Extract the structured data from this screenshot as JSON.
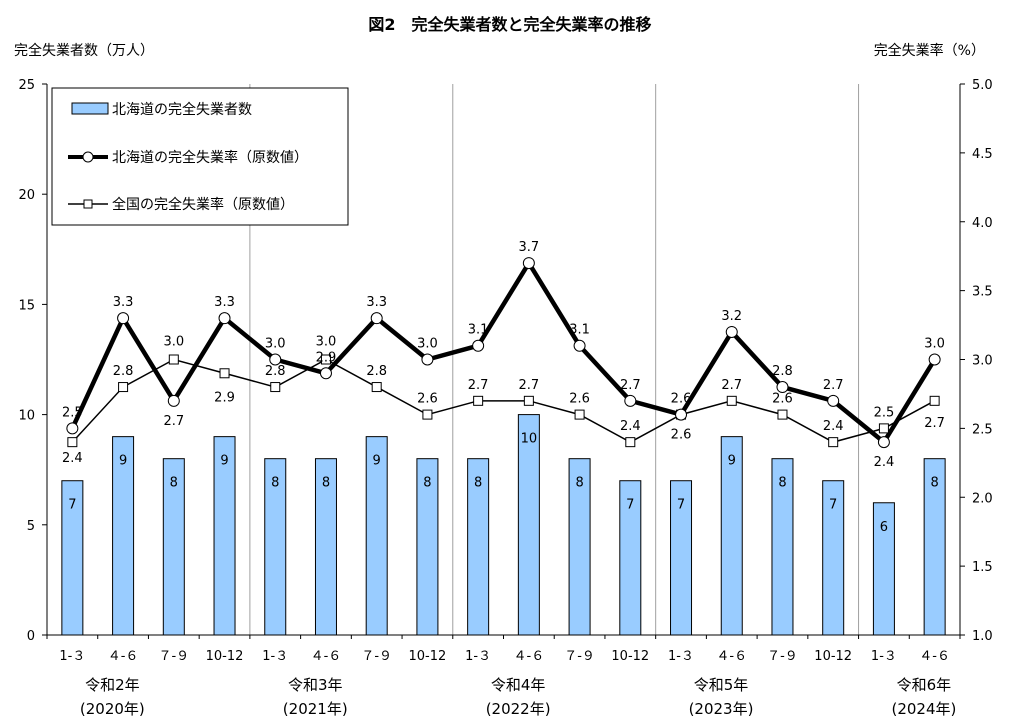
{
  "chart_data": {
    "type": "bar+line",
    "title": "図2　完全失業者数と完全失業率の推移",
    "y_left_label": "完全失業者数（万人）",
    "y_right_label": "完全失業率（%）",
    "y_left_ticks": [
      "0",
      "5",
      "10",
      "15",
      "20",
      "25"
    ],
    "y_right_ticks": [
      "1.0",
      "1.5",
      "2.0",
      "2.5",
      "3.0",
      "3.5",
      "4.0",
      "4.5",
      "5.0"
    ],
    "ylim_left": [
      0,
      25
    ],
    "ylim_right": [
      1.0,
      5.0
    ],
    "categories": [
      "1‐３",
      "４‐６",
      "７‐９",
      "10‐12",
      "1‐３",
      "４‐６",
      "７‐９",
      "10‐12",
      "1‐３",
      "４‐６",
      "７‐９",
      "10‐12",
      "1‐３",
      "４‐６",
      "７‐９",
      "10‐12",
      "1‐３",
      "４‐６"
    ],
    "year_groups": [
      {
        "line1": "令和2年",
        "line2": "(2020年)"
      },
      {
        "line1": "令和3年",
        "line2": "(2021年)"
      },
      {
        "line1": "令和4年",
        "line2": "(2022年)"
      },
      {
        "line1": "令和5年",
        "line2": "(2023年)"
      },
      {
        "line1": "令和6年",
        "line2": "(2024年)"
      }
    ],
    "series": [
      {
        "name": "北海道の完全失業者数",
        "type": "bar",
        "axis": "left",
        "color": "#99ccff",
        "values": [
          7,
          9,
          8,
          9,
          8,
          8,
          9,
          8,
          8,
          10,
          8,
          7,
          7,
          9,
          8,
          7,
          6,
          8
        ],
        "labels": [
          "7",
          "9",
          "8",
          "9",
          "8",
          "8",
          "9",
          "8",
          "8",
          "10",
          "8",
          "7",
          "7",
          "9",
          "8",
          "7",
          "6",
          "8"
        ]
      },
      {
        "name": "北海道の完全失業率（原数値）",
        "type": "line",
        "axis": "right",
        "marker": "circle",
        "values": [
          2.5,
          3.3,
          2.7,
          3.3,
          3.0,
          2.9,
          3.3,
          3.0,
          3.1,
          3.7,
          3.1,
          2.7,
          2.6,
          3.2,
          2.8,
          2.7,
          2.4,
          3.0
        ],
        "labels": [
          "2.5",
          "3.3",
          "2.7",
          "3.3",
          "3.0",
          "2.9",
          "3.3",
          "3.0",
          "3.1",
          "3.7",
          "3.1",
          "2.7",
          "2.6",
          "3.2",
          "2.8",
          "2.7",
          "2.4",
          "3.0"
        ]
      },
      {
        "name": "全国の完全失業率（原数値）",
        "type": "line",
        "axis": "right",
        "marker": "square",
        "values": [
          2.4,
          2.8,
          3.0,
          2.9,
          2.8,
          3.0,
          2.8,
          2.6,
          2.7,
          2.7,
          2.6,
          2.4,
          2.6,
          2.7,
          2.6,
          2.4,
          2.5,
          2.7
        ],
        "labels": [
          "2.4",
          "2.8",
          "3.0",
          "2.9",
          "2.8",
          "3.0",
          "2.8",
          "2.6",
          "2.7",
          "2.7",
          "2.6",
          "2.4",
          "2.6",
          "2.7",
          "2.6",
          "2.4",
          "2.5",
          "2.7"
        ]
      }
    ]
  }
}
